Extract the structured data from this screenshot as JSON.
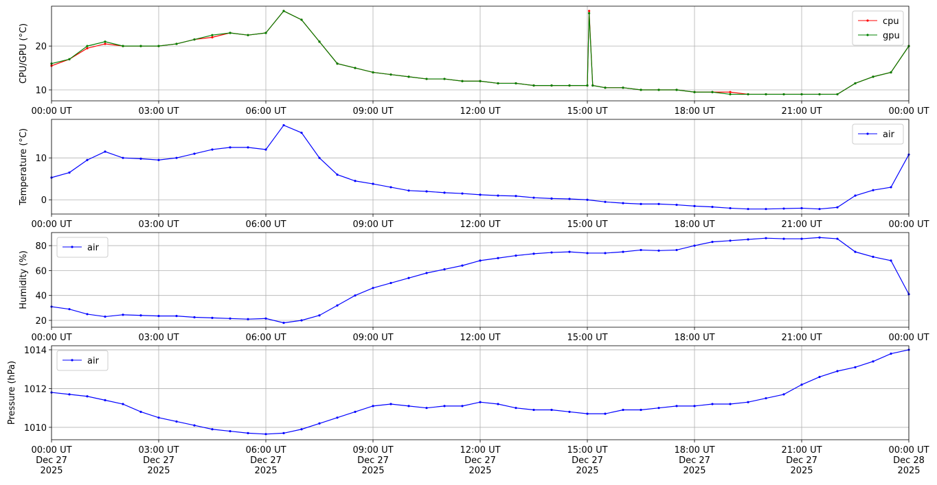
{
  "chart_data": [
    {
      "type": "line",
      "ylabel": "CPU/GPU (°C)",
      "legend": "upper right",
      "grid": true,
      "x": [
        0,
        0.5,
        1,
        1.5,
        2,
        2.5,
        3,
        3.5,
        4,
        4.5,
        5,
        5.5,
        6,
        6.5,
        7,
        7.5,
        8,
        8.5,
        9,
        9.5,
        10,
        10.5,
        11,
        11.5,
        12,
        12.5,
        13,
        13.5,
        14,
        14.5,
        15,
        15.05,
        15.15,
        15.5,
        16,
        16.5,
        17,
        17.5,
        18,
        18.5,
        19,
        19.5,
        20,
        20.5,
        21,
        21.5,
        22,
        22.5,
        23,
        23.5,
        24
      ],
      "series": [
        {
          "name": "cpu",
          "color": "#ff0000",
          "values": [
            15.5,
            17,
            19.5,
            20.5,
            20,
            20,
            20,
            20.5,
            21.5,
            22,
            23,
            22.5,
            23,
            28,
            26,
            21,
            16,
            15,
            14,
            13.5,
            13,
            12.5,
            12.5,
            12,
            12,
            11.5,
            11.5,
            11,
            11,
            11,
            11,
            28,
            11,
            10.5,
            10.5,
            10,
            10,
            10,
            9.5,
            9.5,
            9.5,
            9,
            9,
            9,
            9,
            9,
            9,
            11.5,
            13,
            14,
            20
          ]
        },
        {
          "name": "gpu",
          "color": "#008000",
          "values": [
            16,
            17,
            20,
            21,
            20,
            20,
            20,
            20.5,
            21.5,
            22.5,
            23,
            22.5,
            23,
            28,
            26,
            21,
            16,
            15,
            14,
            13.5,
            13,
            12.5,
            12.5,
            12,
            12,
            11.5,
            11.5,
            11,
            11,
            11,
            11,
            27.5,
            11,
            10.5,
            10.5,
            10,
            10,
            10,
            9.5,
            9.5,
            9,
            9,
            9,
            9,
            9,
            9,
            9,
            11.5,
            13,
            14,
            20
          ]
        }
      ],
      "xlim": [
        0,
        24
      ],
      "ylim": [
        7.5,
        29.1
      ],
      "yticks": [
        10,
        20
      ],
      "xticks": [
        {
          "value": 0,
          "label": "00:00 UT"
        },
        {
          "value": 3,
          "label": "03:00 UT"
        },
        {
          "value": 6,
          "label": "06:00 UT"
        },
        {
          "value": 9,
          "label": "09:00 UT"
        },
        {
          "value": 12,
          "label": "12:00 UT"
        },
        {
          "value": 15,
          "label": "15:00 UT"
        },
        {
          "value": 18,
          "label": "18:00 UT"
        },
        {
          "value": 21,
          "label": "21:00 UT"
        },
        {
          "value": 24,
          "label": "00:00 UT"
        }
      ]
    },
    {
      "type": "line",
      "ylabel": "Temperature (°C)",
      "legend": "upper right",
      "grid": true,
      "x": [
        0,
        0.5,
        1,
        1.5,
        2,
        2.5,
        3,
        3.5,
        4,
        4.5,
        5,
        5.5,
        6,
        6.5,
        7,
        7.5,
        8,
        8.5,
        9,
        9.5,
        10,
        10.5,
        11,
        11.5,
        12,
        12.5,
        13,
        13.5,
        14,
        14.5,
        15,
        15.5,
        16,
        16.5,
        17,
        17.5,
        18,
        18.5,
        19,
        19.5,
        20,
        20.5,
        21,
        21.5,
        22,
        22.5,
        23,
        23.5,
        24
      ],
      "series": [
        {
          "name": "air",
          "color": "#0000ff",
          "values": [
            5.3,
            6.5,
            9.5,
            11.5,
            10,
            9.8,
            9.5,
            10,
            11,
            12,
            12.5,
            12.5,
            12,
            17.8,
            16,
            10,
            6,
            4.5,
            3.8,
            3,
            2.2,
            2,
            1.7,
            1.5,
            1.2,
            1,
            0.9,
            0.5,
            0.3,
            0.2,
            0,
            -0.5,
            -0.8,
            -1,
            -1,
            -1.2,
            -1.5,
            -1.7,
            -2,
            -2.2,
            -2.2,
            -2.1,
            -2,
            -2.2,
            -1.8,
            1,
            2.3,
            3,
            10.8
          ]
        }
      ],
      "xlim": [
        0,
        24
      ],
      "ylim": [
        -3.4,
        19.2
      ],
      "yticks": [
        0,
        10
      ],
      "xticks": [
        {
          "value": 0,
          "label": "00:00 UT"
        },
        {
          "value": 3,
          "label": "03:00 UT"
        },
        {
          "value": 6,
          "label": "06:00 UT"
        },
        {
          "value": 9,
          "label": "09:00 UT"
        },
        {
          "value": 12,
          "label": "12:00 UT"
        },
        {
          "value": 15,
          "label": "15:00 UT"
        },
        {
          "value": 18,
          "label": "18:00 UT"
        },
        {
          "value": 21,
          "label": "21:00 UT"
        },
        {
          "value": 24,
          "label": "00:00 UT"
        }
      ]
    },
    {
      "type": "line",
      "ylabel": "Humidity (%)",
      "legend": "upper left",
      "grid": true,
      "x": [
        0,
        0.5,
        1,
        1.5,
        2,
        2.5,
        3,
        3.5,
        4,
        4.5,
        5,
        5.5,
        6,
        6.5,
        7,
        7.5,
        8,
        8.5,
        9,
        9.5,
        10,
        10.5,
        11,
        11.5,
        12,
        12.5,
        13,
        13.5,
        14,
        14.5,
        15,
        15.5,
        16,
        16.5,
        17,
        17.5,
        18,
        18.5,
        19,
        19.5,
        20,
        20.5,
        21,
        21.5,
        22,
        22.5,
        23,
        23.5,
        24
      ],
      "series": [
        {
          "name": "air",
          "color": "#0000ff",
          "values": [
            31,
            29,
            25,
            23,
            24.5,
            24,
            23.5,
            23.5,
            22.5,
            22,
            21.5,
            21,
            21.5,
            18,
            20,
            24,
            32,
            40,
            46,
            50,
            54,
            58,
            61,
            64,
            68,
            70,
            72,
            73.5,
            74.5,
            75,
            74,
            74,
            75,
            76.5,
            76,
            76.5,
            80,
            83,
            84,
            85,
            86,
            85.5,
            85.5,
            86.5,
            85.5,
            75,
            71,
            68,
            41
          ]
        }
      ],
      "xlim": [
        0,
        24
      ],
      "ylim": [
        14.5,
        90.5
      ],
      "yticks": [
        20,
        40,
        60,
        80
      ],
      "xticks": [
        {
          "value": 0,
          "label": "00:00 UT"
        },
        {
          "value": 3,
          "label": "03:00 UT"
        },
        {
          "value": 6,
          "label": "06:00 UT"
        },
        {
          "value": 9,
          "label": "09:00 UT"
        },
        {
          "value": 12,
          "label": "12:00 UT"
        },
        {
          "value": 15,
          "label": "15:00 UT"
        },
        {
          "value": 18,
          "label": "18:00 UT"
        },
        {
          "value": 21,
          "label": "21:00 UT"
        },
        {
          "value": 24,
          "label": "00:00 UT"
        }
      ]
    },
    {
      "type": "line",
      "ylabel": "Pressure (hPa)",
      "legend": "upper left",
      "grid": true,
      "x": [
        0,
        0.5,
        1,
        1.5,
        2,
        2.5,
        3,
        3.5,
        4,
        4.5,
        5,
        5.5,
        6,
        6.5,
        7,
        7.5,
        8,
        8.5,
        9,
        9.5,
        10,
        10.5,
        11,
        11.5,
        12,
        12.5,
        13,
        13.5,
        14,
        14.5,
        15,
        15.5,
        16,
        16.5,
        17,
        17.5,
        18,
        18.5,
        19,
        19.5,
        20,
        20.5,
        21,
        21.5,
        22,
        22.5,
        23,
        23.5,
        24
      ],
      "series": [
        {
          "name": "air",
          "color": "#0000ff",
          "values": [
            1011.8,
            1011.7,
            1011.6,
            1011.4,
            1011.2,
            1010.8,
            1010.5,
            1010.3,
            1010.1,
            1009.9,
            1009.8,
            1009.7,
            1009.65,
            1009.7,
            1009.9,
            1010.2,
            1010.5,
            1010.8,
            1011.1,
            1011.2,
            1011.1,
            1011.0,
            1011.1,
            1011.1,
            1011.3,
            1011.2,
            1011.0,
            1010.9,
            1010.9,
            1010.8,
            1010.7,
            1010.7,
            1010.9,
            1010.9,
            1011.0,
            1011.1,
            1011.1,
            1011.2,
            1011.2,
            1011.3,
            1011.5,
            1011.7,
            1012.2,
            1012.6,
            1012.9,
            1013.1,
            1013.4,
            1013.8,
            1014
          ]
        }
      ],
      "xlim": [
        0,
        24
      ],
      "ylim": [
        1009.36,
        1014.21
      ],
      "yticks": [
        1010,
        1012,
        1014
      ],
      "xticks": [
        {
          "value": 0,
          "label": "00:00 UT\nDec 27\n2025"
        },
        {
          "value": 3,
          "label": "03:00 UT\nDec 27\n2025"
        },
        {
          "value": 6,
          "label": "06:00 UT\nDec 27\n2025"
        },
        {
          "value": 9,
          "label": "09:00 UT\nDec 27\n2025"
        },
        {
          "value": 12,
          "label": "12:00 UT\nDec 27\n2025"
        },
        {
          "value": 15,
          "label": "15:00 UT\nDec 27\n2025"
        },
        {
          "value": 18,
          "label": "18:00 UT\nDec 27\n2025"
        },
        {
          "value": 21,
          "label": "21:00 UT\nDec 27\n2025"
        },
        {
          "value": 24,
          "label": "00:00 UT\nDec 28\n2025"
        }
      ]
    }
  ]
}
